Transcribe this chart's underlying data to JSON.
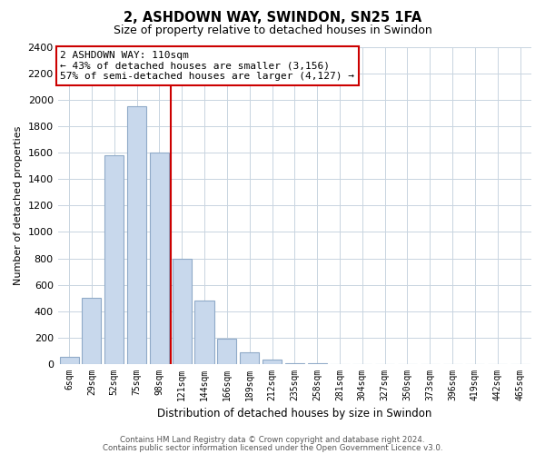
{
  "title": "2, ASHDOWN WAY, SWINDON, SN25 1FA",
  "subtitle": "Size of property relative to detached houses in Swindon",
  "xlabel": "Distribution of detached houses by size in Swindon",
  "ylabel": "Number of detached properties",
  "bar_color": "#c8d8ec",
  "bar_edge_color": "#90aac8",
  "categories": [
    "6sqm",
    "29sqm",
    "52sqm",
    "75sqm",
    "98sqm",
    "121sqm",
    "144sqm",
    "166sqm",
    "189sqm",
    "212sqm",
    "235sqm",
    "258sqm",
    "281sqm",
    "304sqm",
    "327sqm",
    "350sqm",
    "373sqm",
    "396sqm",
    "419sqm",
    "442sqm",
    "465sqm"
  ],
  "values": [
    55,
    500,
    1580,
    1950,
    1600,
    800,
    480,
    190,
    90,
    35,
    5,
    5,
    0,
    0,
    0,
    0,
    0,
    0,
    0,
    0,
    0
  ],
  "ylim": [
    0,
    2400
  ],
  "yticks": [
    0,
    200,
    400,
    600,
    800,
    1000,
    1200,
    1400,
    1600,
    1800,
    2000,
    2200,
    2400
  ],
  "vline_x_index": 4,
  "vline_color": "#cc0000",
  "ann_line1": "2 ASHDOWN WAY: 110sqm",
  "ann_line2": "← 43% of detached houses are smaller (3,156)",
  "ann_line3": "57% of semi-detached houses are larger (4,127) →",
  "annotation_box_color": "#ffffff",
  "annotation_box_edge": "#cc0000",
  "footer1": "Contains HM Land Registry data © Crown copyright and database right 2024.",
  "footer2": "Contains public sector information licensed under the Open Government Licence v3.0.",
  "background_color": "#ffffff",
  "grid_color": "#c8d4e0"
}
